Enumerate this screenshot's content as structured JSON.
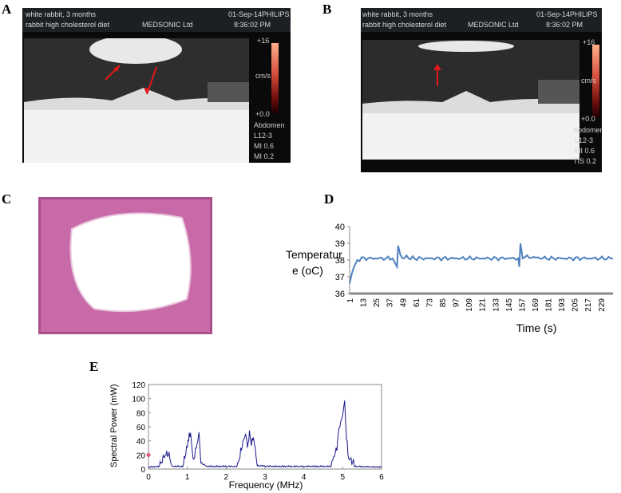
{
  "panel_labels": {
    "a": "A",
    "b": "B",
    "c": "C",
    "d": "D",
    "e": "E"
  },
  "ultrasound_a": {
    "line1": "white rabbit, 3 months",
    "line2": "rabbit high cholesterol diet",
    "company": "MEDSONIC Ltd",
    "date": "01-Sep-14",
    "brand": "PHILIPS",
    "time": "8:36:02 PM",
    "scale_top": "+16",
    "unit": "cm/s",
    "scale_bottom": "+0.0",
    "info1": "Abdomen",
    "info2": "L12-3",
    "info3": "MI 0.6",
    "info4": "MI 0.2"
  },
  "ultrasound_b": {
    "line1": "white rabbit, 3 months",
    "line2": "rabbit high cholesterol diet",
    "company": "MEDSONIC Ltd",
    "date": "01-Sep-14",
    "brand": "PHILIPS",
    "time": "8:36:02 PM",
    "scale_top": "+16",
    "unit": "cm/s",
    "scale_bottom": "+0.0",
    "info1": "Abdomen",
    "info2": "L12-3",
    "info3": "MI 0.6",
    "info4": "TIS 0.2"
  },
  "colors": {
    "temp_line": "#4f81bd",
    "spectrum_line": "#1a1a8c",
    "tissue_pink": "#c96aa8",
    "lumen": "#ffffff"
  },
  "chart_data": [
    {
      "type": "line",
      "ylabel": "Temperature (oC)",
      "ylabel_line1": "Temperatur",
      "ylabel_line2": "e (oC)",
      "xlabel": "Time (s)",
      "ylim": [
        36,
        40
      ],
      "yticks": [
        "36",
        "37",
        "38",
        "39",
        "40"
      ],
      "xticks": [
        "1",
        "13",
        "25",
        "37",
        "49",
        "61",
        "73",
        "85",
        "97",
        "109",
        "121",
        "133",
        "145",
        "157",
        "169",
        "181",
        "193",
        "205",
        "217",
        "229"
      ],
      "xlim": [
        1,
        240
      ],
      "series": [
        {
          "values": [
            [
              1,
              36.6
            ],
            [
              3,
              37.2
            ],
            [
              5,
              37.6
            ],
            [
              8,
              38.0
            ],
            [
              12,
              38.1
            ],
            [
              20,
              38.1
            ],
            [
              30,
              38.1
            ],
            [
              40,
              38.1
            ],
            [
              44,
              37.6
            ],
            [
              45,
              38.9
            ],
            [
              47,
              38.2
            ],
            [
              60,
              38.1
            ],
            [
              80,
              38.1
            ],
            [
              100,
              38.1
            ],
            [
              120,
              38.1
            ],
            [
              140,
              38.1
            ],
            [
              154,
              38.1
            ],
            [
              155,
              37.6
            ],
            [
              156,
              38.9
            ],
            [
              158,
              38.2
            ],
            [
              180,
              38.1
            ],
            [
              200,
              38.1
            ],
            [
              220,
              38.1
            ],
            [
              240,
              38.1
            ]
          ]
        }
      ],
      "grid": false
    },
    {
      "type": "line",
      "xlabel": "Frequency (MHz)",
      "ylabel": "Spectral Power (mW)",
      "xlim": [
        0,
        6
      ],
      "ylim": [
        0,
        120
      ],
      "xticks": [
        "0",
        "1",
        "2",
        "3",
        "4",
        "5",
        "6"
      ],
      "yticks": [
        "0",
        "20",
        "40",
        "60",
        "80",
        "100",
        "120"
      ],
      "series": [
        {
          "values": [
            [
              0,
              2
            ],
            [
              0.3,
              3
            ],
            [
              0.45,
              18
            ],
            [
              0.55,
              14
            ],
            [
              0.6,
              3
            ],
            [
              0.9,
              3
            ],
            [
              1.0,
              30
            ],
            [
              1.05,
              45
            ],
            [
              1.1,
              42
            ],
            [
              1.15,
              5
            ],
            [
              1.25,
              32
            ],
            [
              1.3,
              45
            ],
            [
              1.35,
              8
            ],
            [
              1.5,
              3
            ],
            [
              2.0,
              3
            ],
            [
              2.3,
              3
            ],
            [
              2.45,
              38
            ],
            [
              2.5,
              44
            ],
            [
              2.55,
              30
            ],
            [
              2.6,
              45
            ],
            [
              2.65,
              32
            ],
            [
              2.7,
              40
            ],
            [
              2.75,
              25
            ],
            [
              2.8,
              4
            ],
            [
              3.2,
              3
            ],
            [
              4.0,
              3
            ],
            [
              4.7,
              3
            ],
            [
              4.85,
              25
            ],
            [
              4.9,
              52
            ],
            [
              4.95,
              62
            ],
            [
              5.0,
              75
            ],
            [
              5.05,
              88
            ],
            [
              5.1,
              40
            ],
            [
              5.15,
              12
            ],
            [
              5.3,
              3
            ],
            [
              6.0,
              2
            ]
          ]
        }
      ],
      "marker": {
        "x": 0,
        "y": 20,
        "color": "#e05a7a"
      },
      "grid": false
    }
  ]
}
